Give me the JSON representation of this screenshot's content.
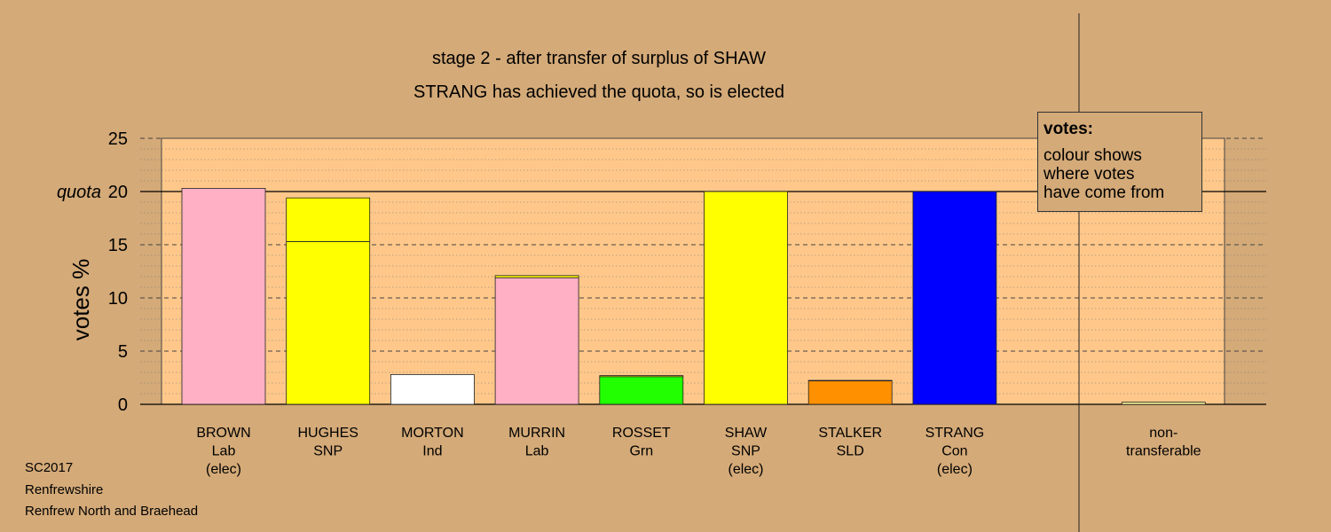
{
  "colors": {
    "background": "#d4aa78",
    "plot_background": "#ffc88a",
    "Lab": "#ffb0c4",
    "SNP": "#ffff00",
    "Ind": "#ffffff",
    "Grn": "#22ff00",
    "SLD": "#ff9000",
    "Con": "#0000ff",
    "non-transferable": "#ffff99"
  },
  "chart_data": {
    "type": "bar",
    "title": "stage 2 - after transfer of surplus of SHAW",
    "subtitle": "STRANG has achieved the quota, so is elected",
    "ylabel": "votes %",
    "ylim": [
      0,
      25
    ],
    "yticks": [
      0,
      5,
      10,
      15,
      20,
      25
    ],
    "quota": 20,
    "quota_label": "quota",
    "grid": true,
    "legend_position": "top-right",
    "categories": [
      {
        "lines": [
          "BROWN",
          "Lab",
          "(elec)"
        ]
      },
      {
        "lines": [
          "HUGHES",
          "SNP",
          ""
        ]
      },
      {
        "lines": [
          "MORTON",
          "Ind",
          ""
        ]
      },
      {
        "lines": [
          "MURRIN",
          "Lab",
          ""
        ]
      },
      {
        "lines": [
          "ROSSET",
          "Grn",
          ""
        ]
      },
      {
        "lines": [
          "SHAW",
          "SNP",
          "(elec)"
        ]
      },
      {
        "lines": [
          "STALKER",
          "SLD",
          ""
        ]
      },
      {
        "lines": [
          "STRANG",
          "Con",
          "(elec)"
        ]
      },
      {
        "lines": [
          "",
          "",
          ""
        ]
      },
      {
        "lines": [
          "non-",
          "transferable",
          ""
        ]
      }
    ],
    "bars": [
      {
        "segments": [
          {
            "party": "Lab",
            "value": 20.3
          }
        ]
      },
      {
        "segments": [
          {
            "party": "SNP",
            "value": 15.3
          },
          {
            "party": "SNP",
            "value": 4.1
          }
        ]
      },
      {
        "segments": [
          {
            "party": "Ind",
            "value": 2.8
          }
        ]
      },
      {
        "segments": [
          {
            "party": "Lab",
            "value": 11.9
          },
          {
            "party": "SNP",
            "value": 0.2
          }
        ]
      },
      {
        "segments": [
          {
            "party": "Grn",
            "value": 2.6
          },
          {
            "party": "SNP",
            "value": 0.1
          }
        ]
      },
      {
        "segments": [
          {
            "party": "SNP",
            "value": 20.0
          }
        ]
      },
      {
        "segments": [
          {
            "party": "SLD",
            "value": 2.2
          },
          {
            "party": "SNP",
            "value": 0.05
          }
        ]
      },
      {
        "segments": [
          {
            "party": "Con",
            "value": 20.0
          }
        ]
      },
      {
        "segments": []
      },
      {
        "segments": [
          {
            "party": "non-transferable",
            "value": 0.2
          }
        ]
      }
    ]
  },
  "legend": {
    "title": "votes:",
    "text": "colour shows\nwhere votes\nhave come from"
  },
  "footer": {
    "line1": "SC2017",
    "line2": "Renfrewshire",
    "line3": "Renfrew North and Braehead"
  }
}
